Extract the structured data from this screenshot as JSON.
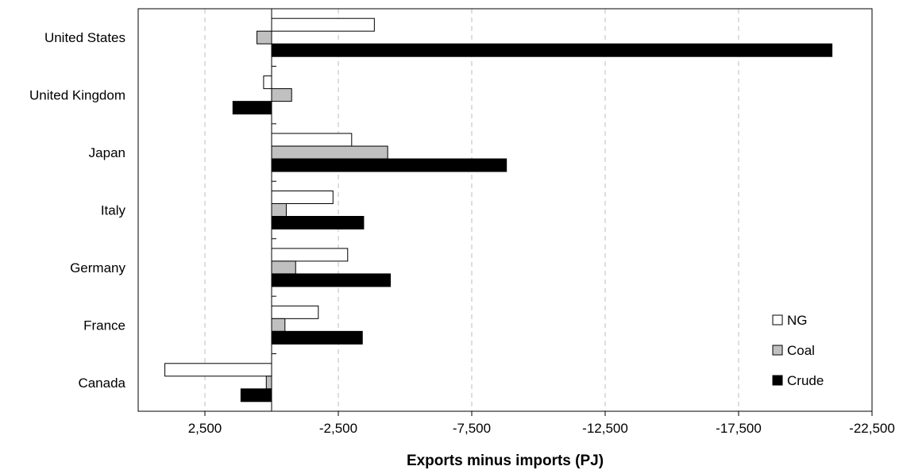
{
  "chart_data": {
    "type": "bar",
    "orientation": "horizontal",
    "title": "",
    "xlabel": "Exports minus imports (PJ)",
    "ylabel": "",
    "xlim": [
      5000,
      -22500
    ],
    "x_reversed": true,
    "xticks": [
      2500,
      -2500,
      -7500,
      -12500,
      -17500,
      -22500
    ],
    "xtick_labels": [
      "2,500",
      "-2,500",
      "-7,500",
      "-12,500",
      "-17,500",
      "-22,500"
    ],
    "grid": "vertical dashed",
    "legend_position": "bottom-right",
    "categories": [
      "United States",
      "United Kingdom",
      "Japan",
      "Italy",
      "Germany",
      "France",
      "Canada"
    ],
    "series": [
      {
        "name": "NG",
        "color": "#ffffff",
        "values": [
          -3850,
          300,
          -3000,
          -2300,
          -2850,
          -1750,
          4000
        ]
      },
      {
        "name": "Coal",
        "color": "#c0c0c0",
        "values": [
          550,
          -750,
          -4350,
          -550,
          -900,
          -500,
          200
        ]
      },
      {
        "name": "Crude",
        "color": "#000000",
        "values": [
          -21000,
          1450,
          -8800,
          -3450,
          -4450,
          -3400,
          1150
        ]
      }
    ]
  }
}
